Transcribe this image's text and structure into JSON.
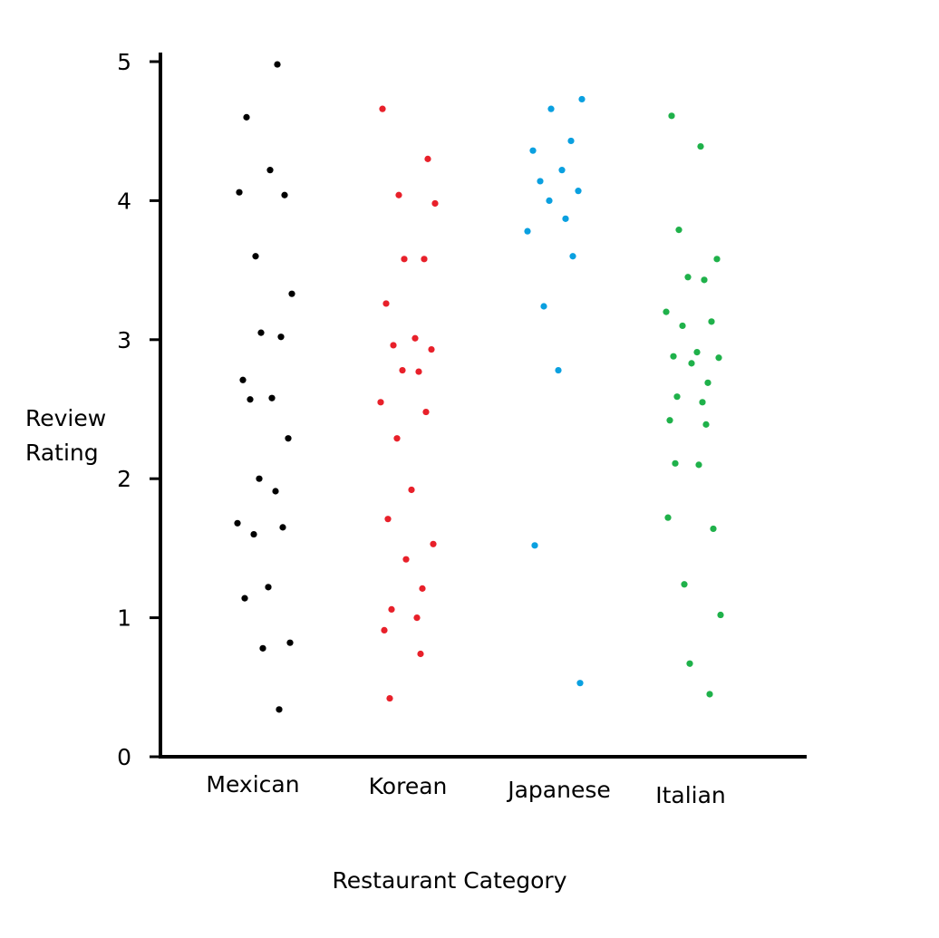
{
  "chart_data": {
    "type": "scatter",
    "xlabel": "Restaurant Category",
    "ylabel": [
      "Review",
      "Rating"
    ],
    "yticks": [
      "0",
      "1",
      "2",
      "3",
      "4",
      "5"
    ],
    "ylim": [
      0,
      5
    ],
    "grid": false,
    "categories": [
      "Mexican",
      "Korean",
      "Japanese",
      "Italian"
    ],
    "series": [
      {
        "category": "Mexican",
        "color": "#000000",
        "values": [
          4.98,
          4.6,
          4.22,
          4.06,
          4.04,
          3.6,
          3.33,
          3.05,
          3.02,
          2.71,
          2.58,
          2.57,
          2.29,
          2.0,
          1.91,
          1.68,
          1.65,
          1.6,
          1.22,
          1.14,
          0.82,
          0.78,
          0.34
        ]
      },
      {
        "category": "Korean",
        "color": "#e8202a",
        "values": [
          4.66,
          4.3,
          4.04,
          3.98,
          3.58,
          3.58,
          3.26,
          3.01,
          2.96,
          2.93,
          2.78,
          2.77,
          2.55,
          2.48,
          2.29,
          1.92,
          1.71,
          1.53,
          1.42,
          1.21,
          1.06,
          1.0,
          0.91,
          0.74,
          0.42
        ]
      },
      {
        "category": "Japanese",
        "color": "#0aa0e0",
        "values": [
          4.73,
          4.66,
          4.43,
          4.36,
          4.22,
          4.14,
          4.07,
          4.0,
          3.87,
          3.78,
          3.6,
          3.24,
          2.78,
          1.52,
          0.53
        ]
      },
      {
        "category": "Italian",
        "color": "#1fb14a",
        "values": [
          4.61,
          4.39,
          3.79,
          3.58,
          3.45,
          3.43,
          3.2,
          3.13,
          3.1,
          2.91,
          2.88,
          2.87,
          2.83,
          2.69,
          2.59,
          2.55,
          2.42,
          2.39,
          2.11,
          2.1,
          1.72,
          1.64,
          1.24,
          1.02,
          0.67,
          0.45
        ]
      }
    ]
  }
}
